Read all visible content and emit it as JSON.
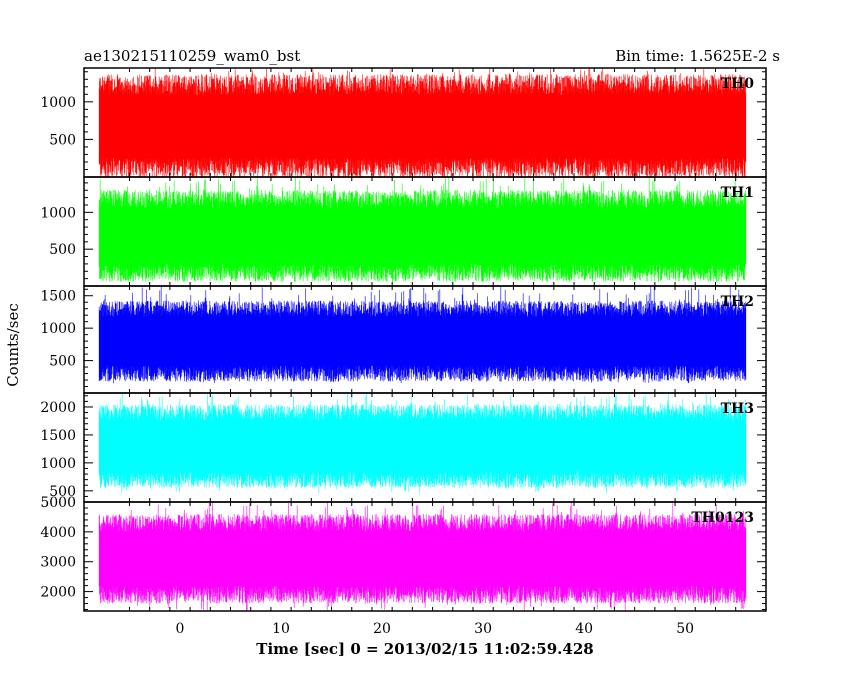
{
  "chart_data": {
    "type": "line",
    "title_left": "ae130215110259_wam0_bst",
    "title_right": "Bin time: 1.5625E-2 s",
    "xlabel": "Time [sec] 0 = 2013/02/15 11:02:59.428",
    "ylabel": "Counts/sec",
    "xlim": [
      -9.5,
      58
    ],
    "x_ticks": [
      0,
      10,
      20,
      30,
      40,
      50
    ],
    "x_tick_labels": [
      "0",
      "10",
      "20",
      "30",
      "40",
      "50"
    ],
    "data_x_range": [
      -8,
      56
    ],
    "grid": false,
    "panels": [
      {
        "label": "TH0",
        "color": "#ff0000",
        "ylim": [
          0,
          1450
        ],
        "y_ticks": [
          500,
          1000
        ],
        "y_tick_labels": [
          "500",
          "1000"
        ],
        "typical_range": [
          120,
          1230
        ],
        "extremes": [
          20,
          1450
        ]
      },
      {
        "label": "TH1",
        "color": "#00ff00",
        "ylim": [
          0,
          1480
        ],
        "y_ticks": [
          500,
          1000
        ],
        "y_tick_labels": [
          "500",
          "1000"
        ],
        "typical_range": [
          180,
          1180
        ],
        "extremes": [
          60,
          1480
        ]
      },
      {
        "label": "TH2",
        "color": "#0000ff",
        "ylim": [
          0,
          1650
        ],
        "y_ticks": [
          500,
          1000,
          1500
        ],
        "y_tick_labels": [
          "500",
          "1000",
          "1500"
        ],
        "typical_range": [
          300,
          1300
        ],
        "extremes": [
          150,
          1650
        ]
      },
      {
        "label": "TH3",
        "color": "#00ffff",
        "ylim": [
          300,
          2250
        ],
        "y_ticks": [
          500,
          1000,
          1500,
          2000
        ],
        "y_tick_labels": [
          "500",
          "1000",
          "1500",
          "2000"
        ],
        "typical_range": [
          700,
          1900
        ],
        "extremes": [
          450,
          2250
        ]
      },
      {
        "label": "TH0123",
        "color": "#ff00ff",
        "ylim": [
          1350,
          5000
        ],
        "y_ticks": [
          2000,
          3000,
          4000,
          5000
        ],
        "y_tick_labels": [
          "2000",
          "3000",
          "4000",
          "5000"
        ],
        "typical_range": [
          1900,
          4300
        ],
        "extremes": [
          1350,
          5000
        ]
      }
    ]
  }
}
